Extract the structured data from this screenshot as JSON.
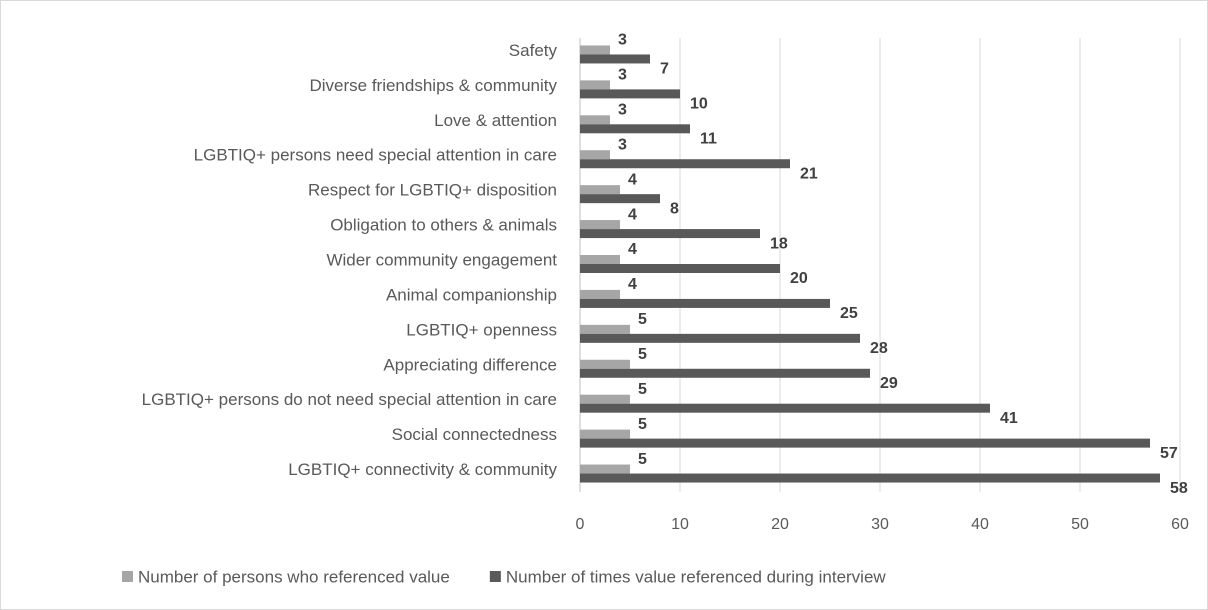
{
  "chart_data": {
    "type": "hbar",
    "categories": [
      "Safety",
      "Diverse friendships & community",
      "Love & attention",
      "LGBTIQ+ persons need special attention in care",
      "Respect for LGBTIQ+ disposition",
      "Obligation to others & animals",
      "Wider community engagement",
      "Animal companionship",
      "LGBTIQ+ openness",
      "Appreciating difference",
      "LGBTIQ+ persons do not need special attention in care",
      "Social connectedness",
      "LGBTIQ+ connectivity & community"
    ],
    "series": [
      {
        "name": "Number of persons who referenced value",
        "color": "#a6a6a6",
        "values": [
          3,
          3,
          3,
          3,
          4,
          4,
          4,
          4,
          5,
          5,
          5,
          5,
          5
        ]
      },
      {
        "name": "Number of times value referenced during interview",
        "color": "#595959",
        "values": [
          7,
          10,
          11,
          21,
          8,
          18,
          20,
          25,
          28,
          29,
          41,
          57,
          58
        ]
      }
    ],
    "xlim": [
      0,
      60
    ],
    "xticks": [
      0,
      10,
      20,
      30,
      40,
      50,
      60
    ],
    "grid": true,
    "legend": "bottom"
  }
}
